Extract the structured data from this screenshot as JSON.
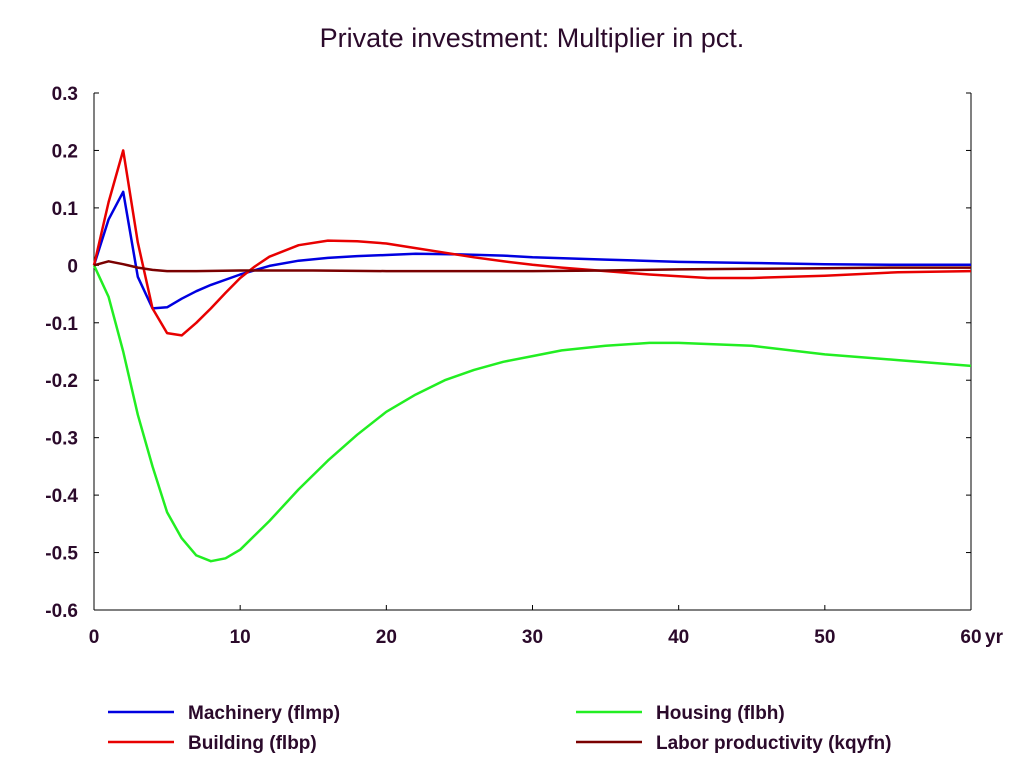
{
  "chart_data": {
    "type": "line",
    "title": "Private investment: Multiplier in pct.",
    "x_unit_label": "yr",
    "xlim": [
      0,
      60
    ],
    "ylim": [
      -0.6,
      0.3
    ],
    "x_ticks": [
      0,
      10,
      20,
      30,
      40,
      50,
      60
    ],
    "x_tick_labels": [
      "0",
      "10",
      "20",
      "30",
      "40",
      "50",
      "60"
    ],
    "y_ticks": [
      0.3,
      0.2,
      0.1,
      0,
      -0.1,
      -0.2,
      -0.3,
      -0.4,
      -0.5,
      -0.6
    ],
    "y_tick_labels": [
      "0.3",
      "0.2",
      "0.1",
      "0",
      "-0.1",
      "-0.2",
      "-0.3",
      "-0.4",
      "-0.5",
      "-0.6"
    ],
    "grid": false,
    "legend_position": "bottom",
    "series": [
      {
        "name": "Machinery (flmp)",
        "color": "#0000e0",
        "x": [
          0,
          1,
          2,
          3,
          4,
          5,
          6,
          7,
          8,
          10,
          12,
          14,
          16,
          18,
          20,
          22,
          25,
          28,
          30,
          35,
          40,
          45,
          50,
          55,
          60
        ],
        "y": [
          0,
          0.08,
          0.128,
          -0.02,
          -0.075,
          -0.073,
          -0.058,
          -0.045,
          -0.034,
          -0.016,
          -0.001,
          0.008,
          0.013,
          0.016,
          0.018,
          0.02,
          0.019,
          0.017,
          0.014,
          0.01,
          0.006,
          0.004,
          0.002,
          0.001,
          0.001
        ]
      },
      {
        "name": "Building (flbp)",
        "color": "#e80000",
        "x": [
          0,
          1,
          2,
          3,
          4,
          5,
          6,
          7,
          8,
          9,
          10,
          11,
          12,
          14,
          16,
          18,
          20,
          22,
          24,
          26,
          28,
          30,
          32,
          35,
          38,
          40,
          42,
          45,
          50,
          55,
          60
        ],
        "y": [
          0,
          0.11,
          0.2,
          0.04,
          -0.075,
          -0.118,
          -0.122,
          -0.1,
          -0.075,
          -0.048,
          -0.022,
          -0.002,
          0.015,
          0.035,
          0.043,
          0.042,
          0.038,
          0.03,
          0.022,
          0.014,
          0.007,
          0.001,
          -0.004,
          -0.01,
          -0.016,
          -0.019,
          -0.022,
          -0.022,
          -0.018,
          -0.012,
          -0.01
        ]
      },
      {
        "name": "Housing (flbh)",
        "color": "#22ee22",
        "x": [
          0,
          1,
          2,
          3,
          4,
          5,
          6,
          7,
          8,
          9,
          10,
          12,
          14,
          16,
          18,
          20,
          22,
          24,
          26,
          28,
          30,
          32,
          35,
          38,
          40,
          45,
          50,
          55,
          60
        ],
        "y": [
          0,
          -0.055,
          -0.15,
          -0.26,
          -0.35,
          -0.43,
          -0.475,
          -0.505,
          -0.515,
          -0.51,
          -0.495,
          -0.445,
          -0.39,
          -0.34,
          -0.295,
          -0.255,
          -0.225,
          -0.2,
          -0.182,
          -0.168,
          -0.158,
          -0.148,
          -0.14,
          -0.135,
          -0.135,
          -0.14,
          -0.155,
          -0.165,
          -0.175
        ]
      },
      {
        "name": "Labor productivity (kqyfn)",
        "color": "#7a0000",
        "x": [
          0,
          1,
          2,
          3,
          4,
          5,
          7,
          10,
          15,
          20,
          25,
          30,
          35,
          40,
          45,
          50,
          55,
          60
        ],
        "y": [
          0,
          0.007,
          0.002,
          -0.004,
          -0.008,
          -0.01,
          -0.01,
          -0.009,
          -0.009,
          -0.01,
          -0.01,
          -0.01,
          -0.009,
          -0.007,
          -0.006,
          -0.005,
          -0.004,
          -0.004
        ]
      }
    ]
  }
}
